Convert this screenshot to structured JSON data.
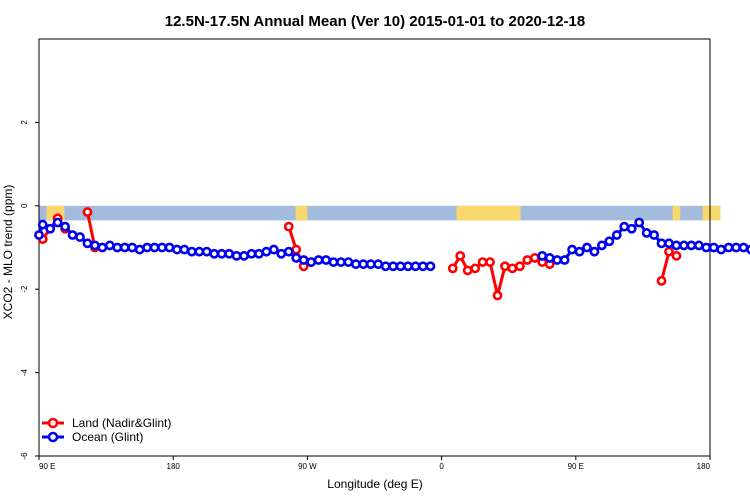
{
  "chart_data": {
    "type": "line",
    "title": "12.5N-17.5N Annual Mean (Ver 10)   2015-01-01 to 2020-12-18",
    "xlabel": "Longitude (deg E)",
    "ylabel": "XCO2 - MLO trend (ppm)",
    "xlim": [
      90,
      450
    ],
    "ylim": [
      -6,
      4
    ],
    "x_ticks": [
      {
        "value": 90,
        "label": "90 E"
      },
      {
        "value": 180,
        "label": "180"
      },
      {
        "value": 270,
        "label": "90 W"
      },
      {
        "value": 360,
        "label": "0"
      },
      {
        "value": 450,
        "label": "90 E"
      },
      {
        "value": 540,
        "label": "180"
      }
    ],
    "y_ticks": [
      {
        "value": -6,
        "label": "-6"
      },
      {
        "value": -4,
        "label": "-4"
      },
      {
        "value": -2,
        "label": "-2"
      },
      {
        "value": 0,
        "label": "0"
      },
      {
        "value": 2,
        "label": "2"
      }
    ],
    "legend": {
      "position": "bottom-left"
    },
    "colors": {
      "land": "#ff0000",
      "ocean": "#0000ee",
      "ocean_mask": "#a3bbdc",
      "land_mask": "#f8d76d"
    },
    "series": [
      {
        "name": "Land (Nadir&Glint)",
        "segments": [
          {
            "x": [
              92.5,
              97.5,
              102.5,
              107.5
            ],
            "y": [
              -0.8,
              -0.55,
              -0.3,
              -0.55
            ]
          },
          {
            "x": [
              122.5,
              127.5
            ],
            "y": [
              -0.15,
              -1.0
            ]
          },
          {
            "x": [
              257.5,
              262.5,
              267.5,
              272.5
            ],
            "y": [
              -0.5,
              -1.05,
              -1.45,
              -1.35
            ]
          },
          {
            "x": [
              367.5,
              372.5,
              377.5,
              382.5,
              387.5,
              392.5,
              397.5,
              402.5,
              407.5,
              412.5,
              417.5,
              422.5,
              427.5,
              432.5
            ],
            "y": [
              -1.5,
              -1.2,
              -1.55,
              -1.5,
              -1.35,
              -1.35,
              -2.15,
              -1.45,
              -1.5,
              -1.45,
              -1.3,
              -1.25,
              -1.35,
              -1.4
            ]
          },
          {
            "x": [
              507.5,
              512.5,
              517.5
            ],
            "y": [
              -1.8,
              -1.1,
              -1.2
            ]
          }
        ]
      },
      {
        "name": "Ocean (Glint)",
        "segments": [
          {
            "x": [
              90,
              92.5,
              97.5,
              102.5,
              107.5,
              112.5,
              117.5,
              122.5,
              127.5,
              132.5,
              137.5,
              142.5,
              147.5,
              152.5,
              157.5,
              162.5,
              167.5,
              172.5,
              177.5,
              182.5,
              187.5,
              192.5,
              197.5,
              202.5,
              207.5,
              212.5,
              217.5,
              222.5,
              227.5,
              232.5,
              237.5,
              242.5,
              247.5,
              252.5,
              257.5,
              262.5,
              267.5,
              272.5,
              277.5,
              282.5,
              287.5,
              292.5,
              297.5,
              302.5,
              307.5,
              312.5,
              317.5,
              322.5,
              327.5,
              332.5,
              337.5,
              342.5,
              347.5,
              352.5
            ],
            "y": [
              -0.7,
              -0.45,
              -0.55,
              -0.4,
              -0.5,
              -0.7,
              -0.75,
              -0.9,
              -0.95,
              -1.0,
              -0.95,
              -1.0,
              -1.0,
              -1.0,
              -1.05,
              -1.0,
              -1.0,
              -1.0,
              -1.0,
              -1.05,
              -1.05,
              -1.1,
              -1.1,
              -1.1,
              -1.15,
              -1.15,
              -1.15,
              -1.2,
              -1.2,
              -1.15,
              -1.15,
              -1.1,
              -1.05,
              -1.15,
              -1.1,
              -1.25,
              -1.3,
              -1.35,
              -1.3,
              -1.3,
              -1.35,
              -1.35,
              -1.35,
              -1.4,
              -1.4,
              -1.4,
              -1.4,
              -1.45,
              -1.45,
              -1.45,
              -1.45,
              -1.45,
              -1.45,
              -1.45
            ]
          },
          {
            "x": [
              427.5,
              432.5,
              437.5,
              442.5,
              447.5,
              452.5,
              457.5,
              462.5,
              467.5,
              472.5,
              477.5,
              482.5,
              487.5,
              492.5,
              497.5,
              502.5,
              507.5,
              512.5,
              517.5,
              522.5,
              527.5,
              532.5,
              537.5,
              542.5,
              547.5,
              552.5,
              557.5,
              562.5,
              567.5,
              572.5,
              577.5,
              582.5,
              587.5,
              592.5,
              597.5,
              602.5,
              607.5,
              612.5,
              617.5,
              622.5,
              627.5,
              632.5,
              637.5
            ],
            "y": [
              -1.2,
              -1.25,
              -1.3,
              -1.3,
              -1.05,
              -1.1,
              -1.0,
              -1.1,
              -0.95,
              -0.85,
              -0.7,
              -0.5,
              -0.55,
              -0.4,
              -0.65,
              -0.7,
              -0.9,
              -0.9,
              -0.95,
              -0.95,
              -0.95,
              -0.95,
              -1.0,
              -1.0,
              -1.05,
              -1.0,
              -1.0,
              -1.0,
              -1.05,
              -1.0,
              -1.0,
              -1.0,
              -1.05,
              -1.05,
              -1.0,
              -1.0,
              -1.0,
              -1.05,
              -1.0,
              -1.0,
              -1.0,
              -1.0,
              -1.0
            ]
          }
        ]
      }
    ],
    "mask_band": {
      "y_range": [
        -0.35,
        0.0
      ],
      "land_intervals": [
        [
          95,
          107
        ],
        [
          262,
          270
        ],
        [
          370,
          413
        ],
        [
          515,
          520
        ],
        [
          535,
          547
        ]
      ]
    }
  }
}
